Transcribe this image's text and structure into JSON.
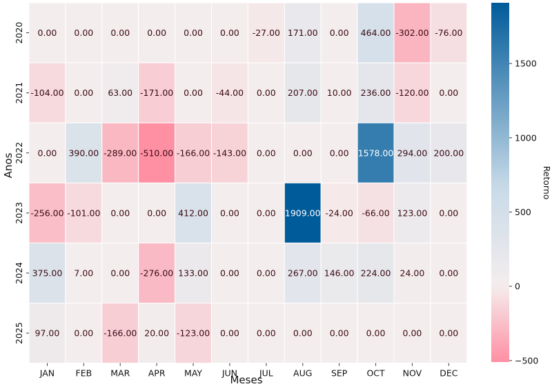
{
  "chart_data": {
    "type": "heatmap",
    "xlabel": "Meses",
    "ylabel": "Anos",
    "colorbar_label": "Retorno",
    "x_categories": [
      "JAN",
      "FEB",
      "MAR",
      "APR",
      "MAY",
      "JUN",
      "JUL",
      "AUG",
      "SEP",
      "OCT",
      "NOV",
      "DEC"
    ],
    "y_categories": [
      "2020",
      "2021",
      "2022",
      "2023",
      "2024",
      "2025"
    ],
    "values": [
      [
        0,
        0,
        0,
        0,
        0,
        0,
        -27,
        171,
        0,
        464,
        -302,
        -76
      ],
      [
        -104,
        0,
        63,
        -171,
        0,
        -44,
        0,
        207,
        10,
        236,
        -120,
        0
      ],
      [
        0,
        390,
        -289,
        -510,
        -166,
        -143,
        0,
        0,
        0,
        1578,
        294,
        200
      ],
      [
        -256,
        -101,
        0,
        0,
        412,
        0,
        0,
        1909,
        -24,
        -66,
        123,
        0
      ],
      [
        375,
        7,
        0,
        -276,
        133,
        0,
        0,
        267,
        146,
        224,
        24,
        0
      ],
      [
        97,
        0,
        -166,
        20,
        -123,
        0,
        0,
        0,
        0,
        0,
        0,
        0
      ]
    ],
    "value_format": "0.00",
    "color_range": [
      -510,
      1909
    ],
    "colorbar_ticks": [
      -500,
      0,
      500,
      1000,
      1500
    ],
    "colors": {
      "negative": "#ff8fa3",
      "zero": "#f4eded",
      "positive": "#005b9a",
      "grid": "#ffffff"
    }
  }
}
